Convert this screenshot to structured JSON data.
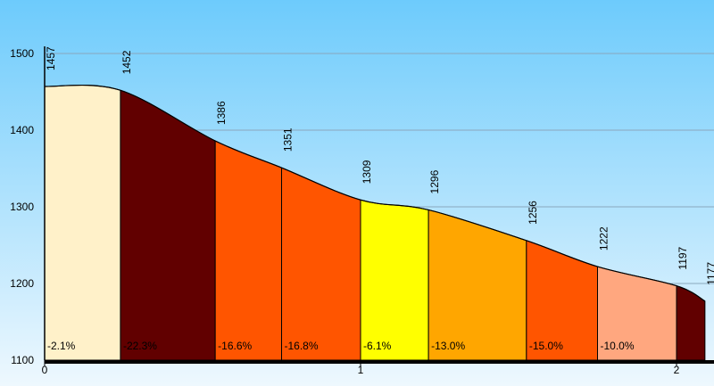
{
  "chart_data": {
    "type": "area",
    "title": "",
    "xlabel": "",
    "ylabel": "",
    "xlim": [
      0,
      2.1
    ],
    "ylim": [
      1100,
      1500
    ],
    "x_ticks": [
      "0",
      "1",
      "2"
    ],
    "y_ticks": [
      "1500",
      "1400",
      "1300",
      "1200",
      "1100"
    ],
    "grid": true,
    "points": [
      {
        "x": 0.0,
        "y": 1457,
        "label": "1457"
      },
      {
        "x": 0.24,
        "y": 1452,
        "label": "1452"
      },
      {
        "x": 0.54,
        "y": 1386,
        "label": "1386"
      },
      {
        "x": 0.75,
        "y": 1351,
        "label": "1351"
      },
      {
        "x": 1.0,
        "y": 1309,
        "label": "1309"
      },
      {
        "x": 1.215,
        "y": 1296,
        "label": "1296"
      },
      {
        "x": 1.525,
        "y": 1256,
        "label": "1256"
      },
      {
        "x": 1.75,
        "y": 1222,
        "label": "1222"
      },
      {
        "x": 2.0,
        "y": 1197,
        "label": "1197"
      },
      {
        "x": 2.09,
        "y": 1177,
        "label": "1177"
      }
    ],
    "segments": [
      {
        "grade": "-2.1%",
        "color": "#FFF1C9"
      },
      {
        "grade": "-22.3%",
        "color": "#610000"
      },
      {
        "grade": "-16.6%",
        "color": "#FF5500"
      },
      {
        "grade": "-16.8%",
        "color": "#FF5500"
      },
      {
        "grade": "-6.1%",
        "color": "#FFFF00"
      },
      {
        "grade": "-13.0%",
        "color": "#FFA600"
      },
      {
        "grade": "-15.0%",
        "color": "#FF5500"
      },
      {
        "grade": "-10.0%",
        "color": "#FFA77F"
      },
      {
        "grade": "",
        "color": "#610000"
      }
    ]
  }
}
